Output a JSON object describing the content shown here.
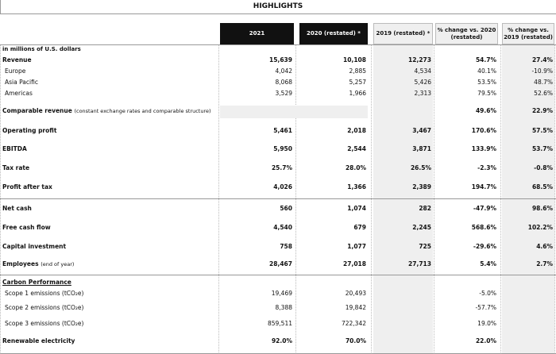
{
  "header": {
    "title": "HIGHLIGHTS"
  },
  "table": {
    "columns": [
      "2021",
      "2020 (restated) *",
      "2019 (restated) *",
      "% change vs. 2020 (restated)",
      "% change vs. 2019 (restated)"
    ],
    "rows": [
      {
        "label": "in millions of U.S. dollars"
      },
      {
        "label": "Revenue",
        "cells": [
          "15,639",
          "10,108",
          "12,273",
          "54.7%",
          "27.4%"
        ]
      },
      {
        "label": "Europe",
        "cells": [
          "4,042",
          "2,885",
          "4,534",
          "40.1%",
          "-10.9%"
        ]
      },
      {
        "label": "Asia Pacific",
        "cells": [
          "8,068",
          "5,257",
          "5,426",
          "53.5%",
          "48.7%"
        ]
      },
      {
        "label": "Americas",
        "cells": [
          "3,529",
          "1,966",
          "2,313",
          "79.5%",
          "52.6%"
        ]
      },
      {
        "label": "Comparable revenue",
        "note": "(constant exchange rates and comparable structure)",
        "cells": [
          null,
          null,
          null,
          "49.6%",
          "22.9%"
        ]
      },
      {
        "label": "Operating profit",
        "cells": [
          "5,461",
          "2,018",
          "3,467",
          "170.6%",
          "57.5%"
        ]
      },
      {
        "label": "EBITDA",
        "cells": [
          "5,950",
          "2,544",
          "3,871",
          "133.9%",
          "53.7%"
        ]
      },
      {
        "label": "Tax rate",
        "cells": [
          "25.7%",
          "28.0%",
          "26.5%",
          "-2.3%",
          "-0.8%"
        ]
      },
      {
        "label": "Profit after tax",
        "cells": [
          "4,026",
          "1,366",
          "2,389",
          "194.7%",
          "68.5%"
        ]
      },
      {
        "label": "Net cash",
        "cells": [
          "560",
          "1,074",
          "282",
          "-47.9%",
          "98.6%"
        ]
      },
      {
        "label": "Free cash flow",
        "cells": [
          "4,540",
          "679",
          "2,245",
          "568.6%",
          "102.2%"
        ]
      },
      {
        "label": "Capital investment",
        "cells": [
          "758",
          "1,077",
          "725",
          "-29.6%",
          "4.6%"
        ]
      },
      {
        "label": "Employees",
        "note": "(end of year)",
        "cells": [
          "28,467",
          "27,018",
          "27,713",
          "5.4%",
          "2.7%"
        ]
      },
      {
        "label": "Carbon Performance"
      },
      {
        "label": "Scope 1 emissions (tCO₂e)",
        "cells": [
          "19,469",
          "20,493",
          null,
          "-5.0%",
          null
        ]
      },
      {
        "label": "Scope 2 emissions (tCO₂e)",
        "cells": [
          "8,388",
          "19,842",
          null,
          "-57.7%",
          null
        ]
      },
      {
        "label": "Scope 3 emissions (tCO₂e)",
        "cells": [
          "859,511",
          "722,342",
          null,
          "19.0%",
          null
        ]
      },
      {
        "label": "Renewable electricity",
        "cells": [
          "92.0%",
          "70.0%",
          null,
          "22.0%",
          null
        ]
      }
    ]
  }
}
